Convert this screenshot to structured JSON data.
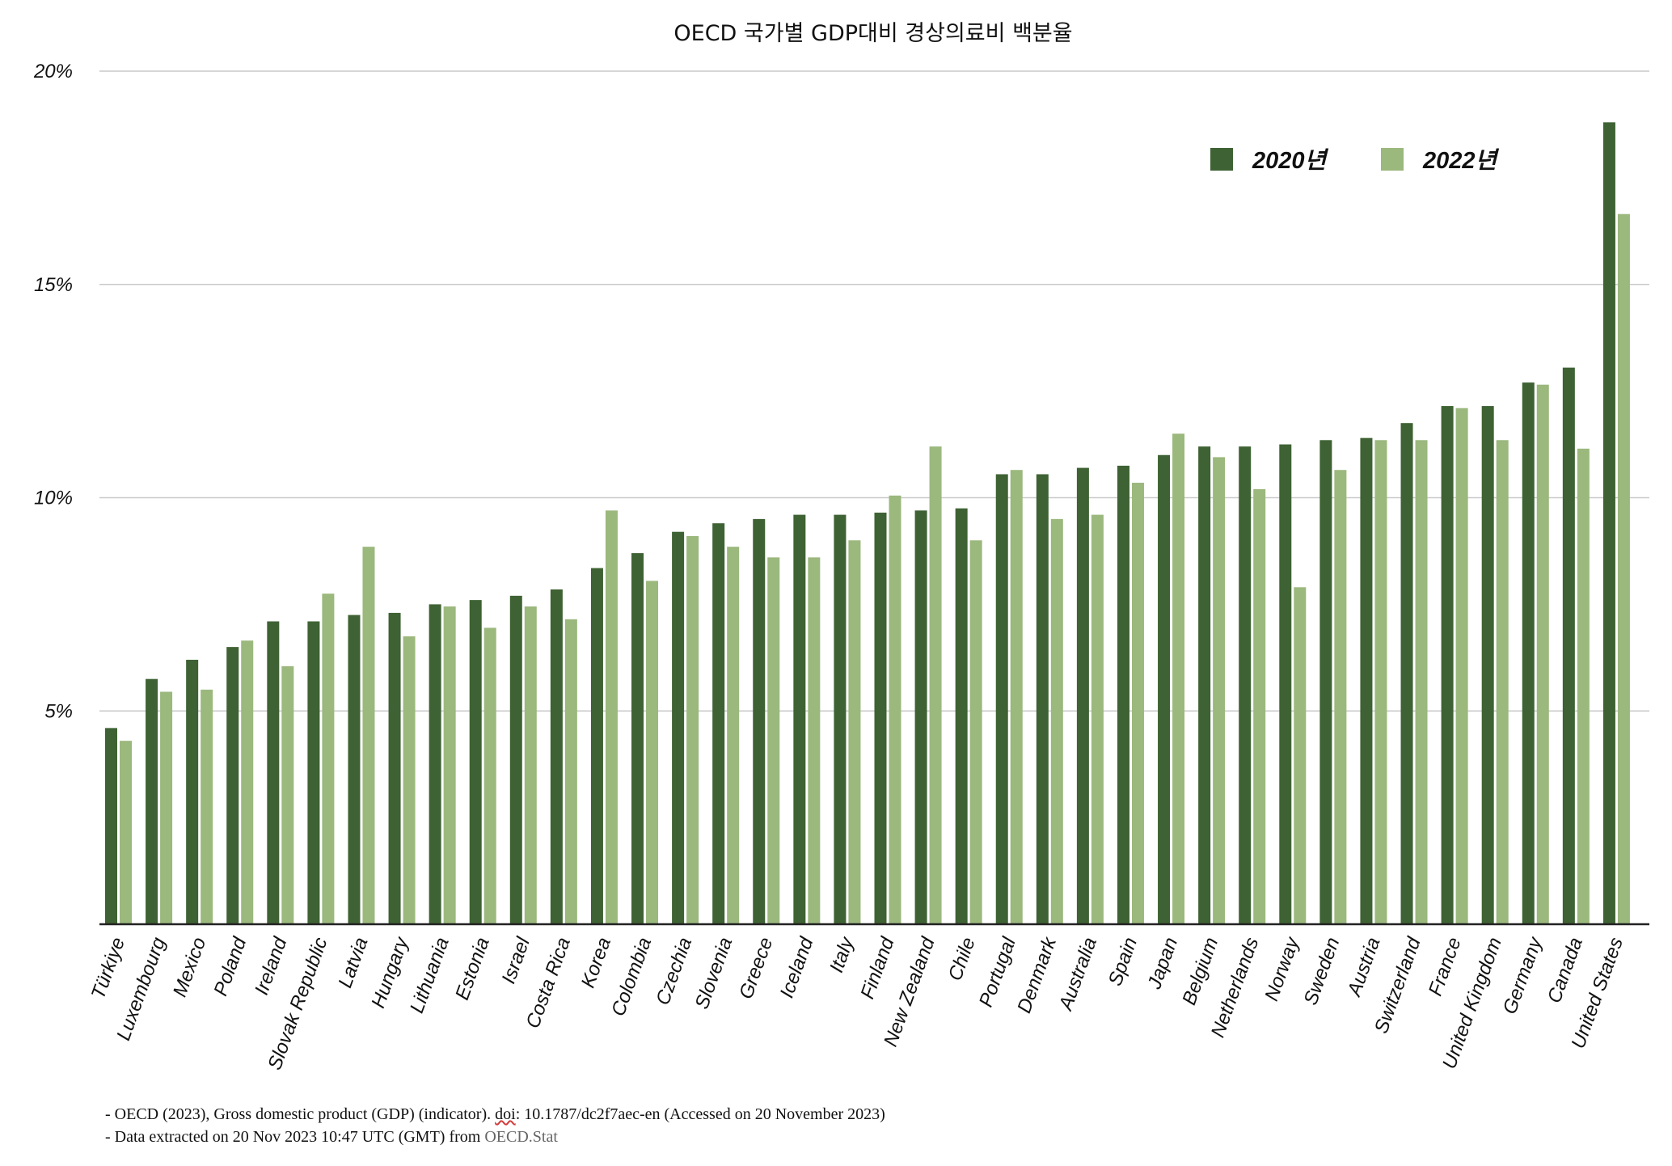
{
  "chart_data": {
    "type": "bar",
    "title": "OECD 국가별 GDP대비 경상의료비 백분율",
    "ylim": [
      0,
      20
    ],
    "yticks": [
      "5%",
      "10%",
      "15%",
      "20%"
    ],
    "ytick_values": [
      5,
      10,
      15,
      20
    ],
    "grid": true,
    "legend_position": "top-right",
    "categories": [
      "Türkiye",
      "Luxembourg",
      "Mexico",
      "Poland",
      "Ireland",
      "Slovak Republic",
      "Latvia",
      "Hungary",
      "Lithuania",
      "Estonia",
      "Israel",
      "Costa Rica",
      "Korea",
      "Colombia",
      "Czechia",
      "Slovenia",
      "Greece",
      "Iceland",
      "Italy",
      "Finland",
      "New Zealand",
      "Chile",
      "Portugal",
      "Denmark",
      "Australia",
      "Spain",
      "Japan",
      "Belgium",
      "Netherlands",
      "Norway",
      "Sweden",
      "Austria",
      "Switzerland",
      "France",
      "United Kingdom",
      "Germany",
      "Canada",
      "United States"
    ],
    "series": [
      {
        "name": "2020년",
        "color": "#3e6233",
        "values": [
          4.6,
          5.75,
          6.2,
          6.5,
          7.1,
          7.1,
          7.25,
          7.3,
          7.5,
          7.6,
          7.7,
          7.85,
          8.35,
          8.7,
          9.2,
          9.4,
          9.5,
          9.6,
          9.6,
          9.65,
          9.7,
          9.75,
          10.55,
          10.55,
          10.7,
          10.75,
          11.0,
          11.2,
          11.2,
          11.25,
          11.35,
          11.4,
          11.75,
          12.15,
          12.15,
          12.7,
          13.05,
          18.8
        ]
      },
      {
        "name": "2022년",
        "color": "#9bb87d",
        "values": [
          4.3,
          5.45,
          5.5,
          6.65,
          6.05,
          7.75,
          8.85,
          6.75,
          7.45,
          6.95,
          7.45,
          7.15,
          9.7,
          8.05,
          9.1,
          8.85,
          8.6,
          8.6,
          9.0,
          10.05,
          11.2,
          9.0,
          10.65,
          9.5,
          9.6,
          10.35,
          11.5,
          10.95,
          10.2,
          7.9,
          10.65,
          11.35,
          11.35,
          12.1,
          11.35,
          12.65,
          11.15,
          16.65
        ]
      }
    ]
  },
  "footnotes": {
    "line1_before": "- OECD (2023), Gross domestic product (GDP) (indicator). ",
    "line1_marked": "doi",
    "line1_after": ": 10.1787/dc2f7aec-en (Accessed on 20 November 2023)",
    "line2_before": "- Data extracted on 20 Nov 2023 10:47 UTC (GMT) from ",
    "line2_link": "OECD.Stat"
  }
}
